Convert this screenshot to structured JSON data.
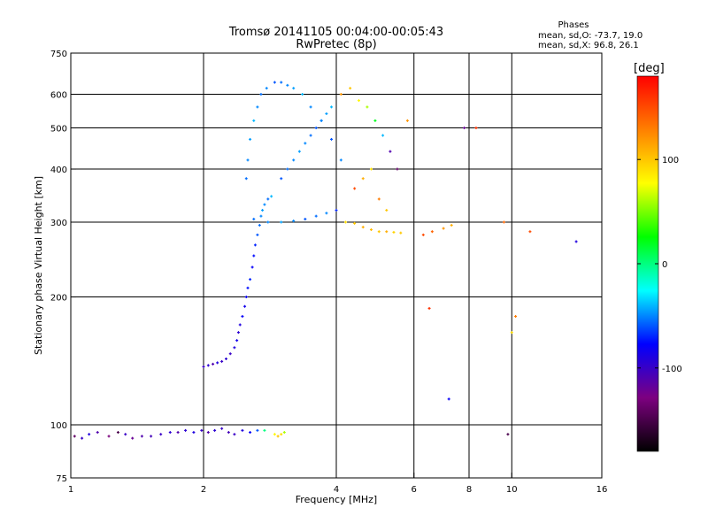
{
  "title_line1": "Tromsø 20141105 00:04:00-00:05:43",
  "title_line2": "RwPretec (8p)",
  "phase_box": {
    "label": "Phases",
    "o_line": "mean, sd,O: -73.7, 19.0",
    "x_line": "mean, sd,X:  96.8, 26.1"
  },
  "colorbar": {
    "label": "[deg]",
    "ticks": [
      {
        "value": 100,
        "label": "100"
      },
      {
        "value": 0,
        "label": "0"
      },
      {
        "value": -100,
        "label": "-100"
      }
    ],
    "range": [
      -180,
      180
    ],
    "gradient": [
      "#000000",
      "#7d0080",
      "#0000ff",
      "#00ffff",
      "#00ff00",
      "#ffff00",
      "#ff8000",
      "#ff0000"
    ]
  },
  "chart_data": {
    "type": "scatter",
    "title": "Tromsø 20141105 00:04:00-00:05:43",
    "subtitle": "RwPretec (8p)",
    "xlabel": "Frequency [MHz]",
    "ylabel": "Stationary phase Virtual Height [km]",
    "x_scale": "log",
    "y_scale": "log",
    "xlim": [
      1,
      16
    ],
    "ylim": [
      75,
      750
    ],
    "x_ticks": [
      1,
      2,
      4,
      6,
      8,
      10,
      16
    ],
    "x_tick_labels": [
      "1",
      "2",
      "4",
      "6",
      "8",
      "10",
      "16"
    ],
    "y_ticks": [
      75,
      100,
      200,
      300,
      400,
      500,
      600,
      750
    ],
    "y_tick_labels": [
      "75",
      "100",
      "200",
      "300",
      "400",
      "500",
      "600",
      "750"
    ],
    "grid": true,
    "color_by": "phase [deg]",
    "series": [
      {
        "x": [
          1.02,
          1.06,
          1.1,
          1.15,
          1.22,
          1.28,
          1.33,
          1.38,
          1.45,
          1.52,
          1.6,
          1.68,
          1.75,
          1.82,
          1.9,
          1.98,
          2.05,
          2.12,
          2.2,
          2.28,
          2.35,
          2.45,
          2.55,
          2.65,
          2.75
        ],
        "y": [
          94,
          93,
          95,
          96,
          94,
          96,
          95,
          93,
          94,
          94,
          95,
          96,
          96,
          97,
          96,
          97,
          96,
          97,
          98,
          96,
          95,
          97,
          96,
          97,
          97
        ],
        "phase": [
          -140,
          -100,
          -90,
          -110,
          -130,
          -150,
          -100,
          -120,
          -110,
          -105,
          -100,
          -95,
          -110,
          -95,
          -90,
          -100,
          -110,
          -95,
          -100,
          -105,
          -100,
          -90,
          -80,
          -60,
          0
        ]
      },
      {
        "x": [
          2.9,
          2.95,
          3.0,
          3.05
        ],
        "y": [
          95,
          94,
          95,
          96
        ],
        "phase": [
          80,
          100,
          90,
          60
        ]
      },
      {
        "x": [
          2.0,
          2.05,
          2.1,
          2.15,
          2.2,
          2.25,
          2.3,
          2.35,
          2.38,
          2.4,
          2.42,
          2.45,
          2.48,
          2.5,
          2.52,
          2.55,
          2.58,
          2.6,
          2.62,
          2.65,
          2.68,
          2.7,
          2.72,
          2.75,
          2.8,
          2.85
        ],
        "y": [
          137,
          138,
          139,
          140,
          141,
          143,
          147,
          152,
          158,
          165,
          172,
          180,
          190,
          200,
          210,
          220,
          235,
          250,
          265,
          280,
          295,
          310,
          320,
          330,
          340,
          345
        ],
        "phase": [
          -100,
          -95,
          -110,
          -90,
          -100,
          -95,
          -100,
          -90,
          -85,
          -95,
          -90,
          -80,
          -85,
          -80,
          -75,
          -70,
          -80,
          -75,
          -70,
          -60,
          -55,
          -50,
          -45,
          -50,
          -55,
          -40
        ]
      },
      {
        "x": [
          2.5,
          2.52,
          2.55,
          2.6,
          2.65,
          2.7,
          2.78,
          2.9,
          3.0,
          3.1,
          3.2,
          3.35,
          3.5,
          3.7,
          3.9,
          4.1
        ],
        "y": [
          380,
          420,
          470,
          520,
          560,
          600,
          620,
          640,
          640,
          630,
          620,
          600,
          560,
          520,
          470,
          420
        ],
        "phase": [
          -55,
          -50,
          -45,
          -40,
          -50,
          -55,
          -50,
          -60,
          -55,
          -50,
          -45,
          -40,
          -50,
          -55,
          -60,
          -50
        ]
      },
      {
        "x": [
          2.6,
          2.8,
          3.0,
          3.2,
          3.4,
          3.6,
          3.8,
          4.0,
          4.2,
          4.4,
          4.6,
          4.8,
          5.0,
          5.2,
          5.4,
          5.6
        ],
        "y": [
          305,
          300,
          300,
          302,
          305,
          310,
          315,
          320,
          300,
          298,
          292,
          288,
          285,
          285,
          284,
          283
        ],
        "phase": [
          -55,
          -50,
          -45,
          -50,
          -60,
          -55,
          -50,
          -70,
          90,
          100,
          110,
          105,
          100,
          110,
          95,
          100
        ]
      },
      {
        "x": [
          3.0,
          3.1,
          3.2,
          3.3,
          3.4,
          3.5,
          3.6,
          3.7,
          3.8,
          3.9
        ],
        "y": [
          380,
          400,
          420,
          440,
          460,
          480,
          500,
          520,
          540,
          560
        ],
        "phase": [
          -60,
          -55,
          -50,
          -45,
          -50,
          -55,
          -60,
          -50,
          -45,
          -40
        ]
      },
      {
        "x": [
          4.1,
          4.3,
          4.5,
          4.7,
          4.9,
          5.1,
          5.3,
          5.5,
          4.4,
          4.6,
          4.8,
          5.0,
          5.2
        ],
        "y": [
          600,
          620,
          580,
          560,
          520,
          480,
          440,
          400,
          360,
          380,
          400,
          340,
          320
        ],
        "phase": [
          120,
          100,
          80,
          60,
          20,
          -40,
          -110,
          -140,
          150,
          110,
          90,
          130,
          100
        ]
      },
      {
        "x": [
          6.3,
          6.6,
          7.0,
          7.3,
          7.8,
          8.3,
          9.6,
          10.2,
          11.0,
          14.0,
          5.8,
          6.5,
          7.2,
          9.8,
          10.0
        ],
        "y": [
          280,
          285,
          290,
          295,
          500,
          500,
          300,
          180,
          285,
          270,
          520,
          188,
          115,
          95,
          165
        ],
        "phase": [
          150,
          140,
          120,
          110,
          -120,
          160,
          140,
          130,
          150,
          -90,
          120,
          160,
          -80,
          -150,
          90
        ]
      }
    ]
  }
}
